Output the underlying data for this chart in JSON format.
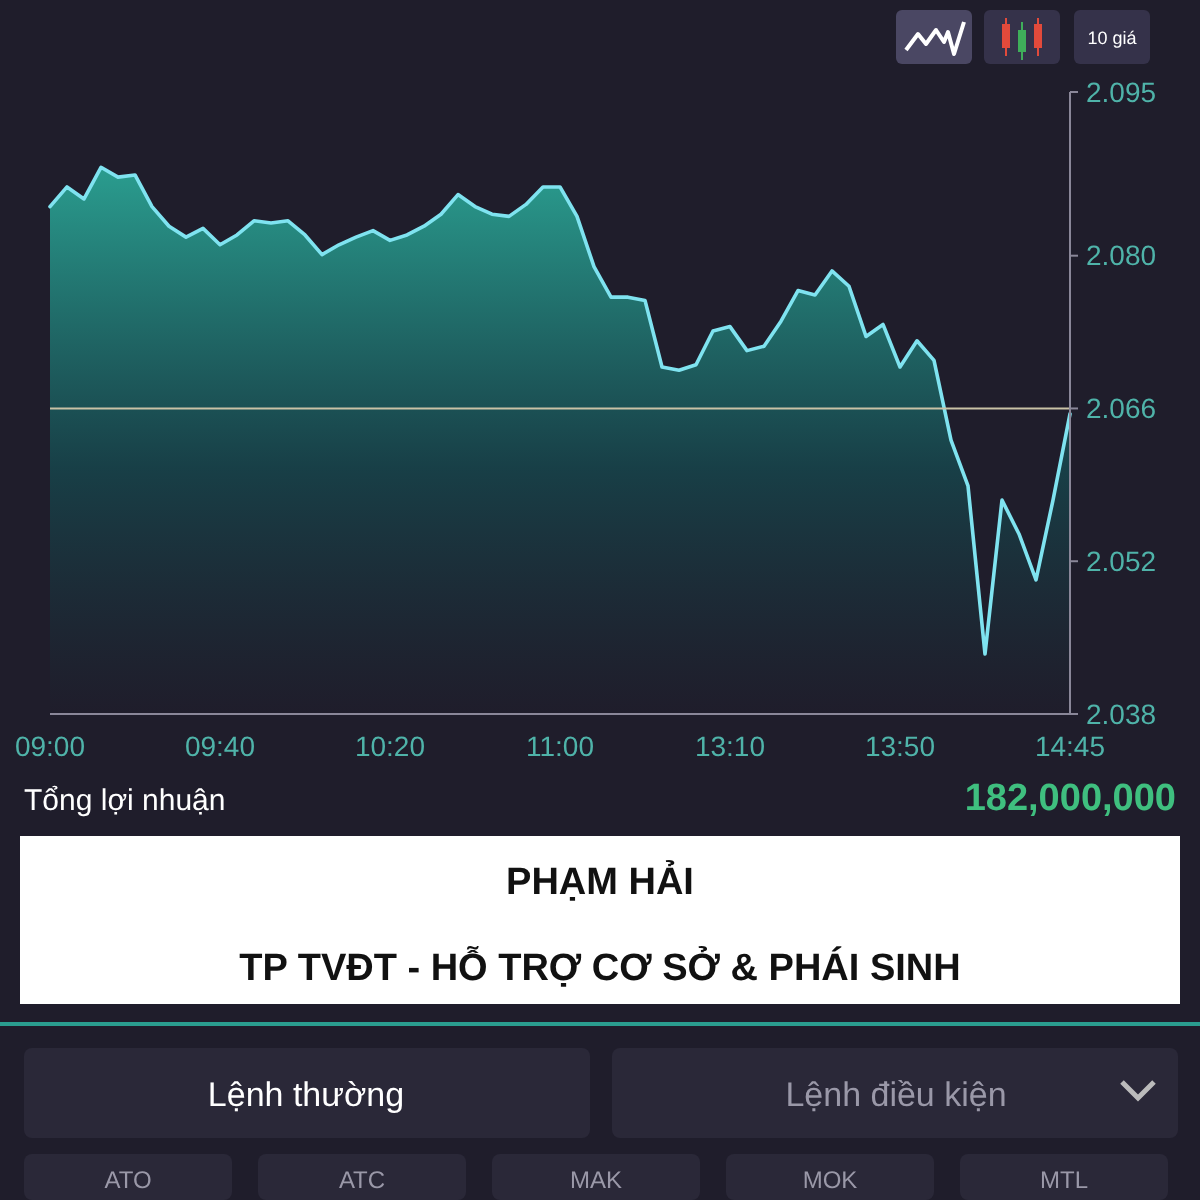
{
  "chart_data": {
    "type": "area",
    "title": "PHẠM HẢI",
    "subtitle": "TP TVĐT - HỖ TRỢ CƠ SỞ & PHÁI SINH",
    "categories": [
      "09:00",
      null,
      null,
      null,
      null,
      null,
      null,
      null,
      null,
      null,
      "09:40",
      null,
      null,
      null,
      null,
      null,
      null,
      null,
      null,
      null,
      "10:20",
      null,
      null,
      null,
      null,
      null,
      null,
      null,
      null,
      null,
      "11:00",
      null,
      null,
      null,
      null,
      null,
      null,
      null,
      null,
      null,
      "13:10",
      null,
      null,
      null,
      null,
      null,
      null,
      null,
      null,
      null,
      "13:50",
      null,
      null,
      null,
      null,
      null,
      null,
      null,
      null,
      null,
      "14:45"
    ],
    "series": [
      {
        "color": "#7fe3f0",
        "values": [
          2.0845,
          2.0863,
          2.0852,
          2.0881,
          2.0872,
          2.0874,
          2.0845,
          2.0827,
          2.0817,
          2.0825,
          2.081,
          2.0819,
          2.0832,
          2.083,
          2.0832,
          2.0819,
          2.0801,
          2.081,
          2.0817,
          2.0823,
          2.0814,
          2.0819,
          2.0827,
          2.0838,
          2.0856,
          2.0845,
          2.0838,
          2.0836,
          2.0847,
          2.0863,
          2.0863,
          2.0836,
          2.079,
          2.0762,
          2.0762,
          2.0759,
          2.0698,
          2.0695,
          2.07,
          2.0731,
          2.0735,
          2.0713,
          2.0717,
          2.074,
          2.0768,
          2.0764,
          2.0786,
          2.0772,
          2.0726,
          2.0737,
          2.0698,
          2.0722,
          2.0704,
          2.0631,
          2.0589,
          2.0435,
          2.0576,
          2.0545,
          2.0503,
          2.0576,
          2.0655
        ]
      }
    ],
    "ylim": [
      2.038,
      2.095
    ],
    "yticks": [
      2.038,
      2.052,
      2.066,
      {
        "value": 2.08,
        "label": "2.080"
      },
      2.095
    ],
    "ref_lines": [
      {
        "axis": "y",
        "value": 2.066,
        "color": "#c9c2a6"
      }
    ],
    "grid": false,
    "annotations": [
      "Tổng lợi nhuận",
      "182,000,000",
      "10 giá",
      "Lệnh thường",
      "Lệnh điều kiện",
      "ATO",
      "ATC",
      "MAK",
      "MOK",
      "MTL"
    ]
  }
}
